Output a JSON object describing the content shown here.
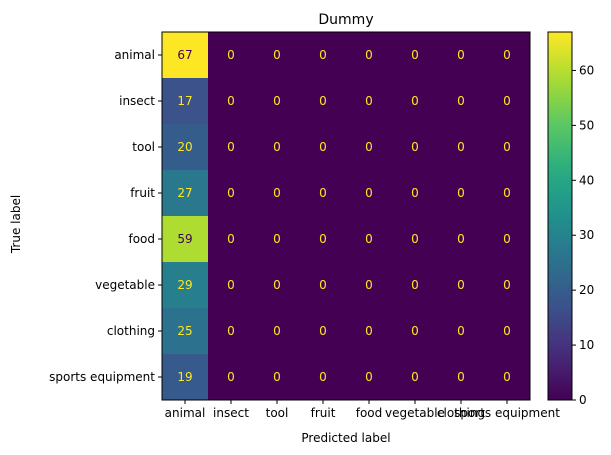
{
  "chart_data": {
    "type": "heatmap",
    "title": "Dummy",
    "xlabel": "Predicted label",
    "ylabel": "True label",
    "x_categories": [
      "animal",
      "insect",
      "tool",
      "fruit",
      "food",
      "vegetable",
      "clothing",
      "sports equipment"
    ],
    "y_categories": [
      "animal",
      "insect",
      "tool",
      "fruit",
      "food",
      "vegetable",
      "clothing",
      "sports equipment"
    ],
    "values": [
      [
        67,
        0,
        0,
        0,
        0,
        0,
        0,
        0
      ],
      [
        17,
        0,
        0,
        0,
        0,
        0,
        0,
        0
      ],
      [
        20,
        0,
        0,
        0,
        0,
        0,
        0,
        0
      ],
      [
        27,
        0,
        0,
        0,
        0,
        0,
        0,
        0
      ],
      [
        59,
        0,
        0,
        0,
        0,
        0,
        0,
        0
      ],
      [
        29,
        0,
        0,
        0,
        0,
        0,
        0,
        0
      ],
      [
        25,
        0,
        0,
        0,
        0,
        0,
        0,
        0
      ],
      [
        19,
        0,
        0,
        0,
        0,
        0,
        0,
        0
      ]
    ],
    "colormap": "viridis",
    "colorbar": {
      "range": [
        0,
        67
      ],
      "ticks": [
        0,
        10,
        20,
        30,
        40,
        50,
        60
      ]
    },
    "text_colors": {
      "on_dark": "#fde725",
      "on_light": "#440154"
    },
    "grid": false,
    "legend": "colorbar-right"
  }
}
